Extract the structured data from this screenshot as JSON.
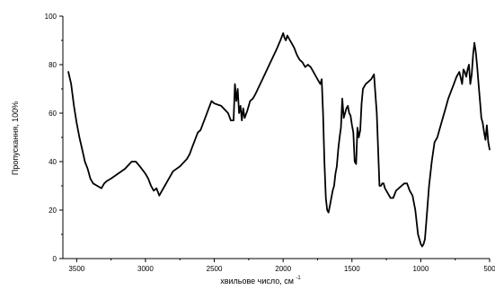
{
  "chart_data": {
    "type": "line",
    "title": "",
    "xlabel": "хвильове число, см",
    "xlabel_superscript": "-1",
    "ylabel": "Пропускання, 100%",
    "xlim": [
      3600,
      500
    ],
    "ylim": [
      0,
      100
    ],
    "x_reversed": true,
    "grid": false,
    "x_ticks": [
      3500,
      3000,
      2500,
      2000,
      1500,
      1000,
      500
    ],
    "y_ticks": [
      0,
      20,
      40,
      60,
      80,
      100
    ],
    "series": [
      {
        "color": "#000000",
        "x": [
          3560,
          3540,
          3520,
          3500,
          3480,
          3460,
          3440,
          3420,
          3400,
          3380,
          3350,
          3320,
          3300,
          3280,
          3250,
          3200,
          3150,
          3100,
          3070,
          3040,
          3000,
          2980,
          2960,
          2940,
          2920,
          2900,
          2880,
          2860,
          2840,
          2800,
          2750,
          2700,
          2680,
          2660,
          2640,
          2620,
          2600,
          2580,
          2560,
          2540,
          2520,
          2500,
          2450,
          2400,
          2380,
          2360,
          2350,
          2340,
          2330,
          2320,
          2310,
          2300,
          2290,
          2280,
          2260,
          2240,
          2220,
          2200,
          2150,
          2100,
          2050,
          2020,
          2000,
          1990,
          1980,
          1970,
          1960,
          1940,
          1920,
          1900,
          1880,
          1860,
          1840,
          1820,
          1800,
          1780,
          1760,
          1740,
          1730,
          1720,
          1710,
          1700,
          1690,
          1680,
          1670,
          1660,
          1650,
          1640,
          1630,
          1620,
          1610,
          1600,
          1590,
          1580,
          1570,
          1560,
          1550,
          1540,
          1530,
          1520,
          1510,
          1500,
          1490,
          1480,
          1470,
          1460,
          1450,
          1440,
          1430,
          1420,
          1400,
          1380,
          1360,
          1340,
          1320,
          1300,
          1290,
          1280,
          1270,
          1260,
          1240,
          1220,
          1200,
          1180,
          1160,
          1140,
          1120,
          1100,
          1080,
          1060,
          1040,
          1020,
          1000,
          990,
          980,
          970,
          960,
          940,
          920,
          900,
          880,
          860,
          840,
          820,
          800,
          780,
          760,
          740,
          720,
          700,
          690,
          680,
          670,
          660,
          650,
          640,
          630,
          620,
          610,
          600,
          590,
          580,
          570,
          560,
          550,
          540,
          530,
          520,
          510,
          500
        ],
        "y": [
          77,
          72,
          63,
          56,
          50,
          45,
          40,
          37,
          33,
          31,
          30,
          29,
          31,
          32,
          33,
          35,
          37,
          40,
          40,
          38,
          35,
          33,
          30,
          28,
          29,
          26,
          28,
          30,
          32,
          36,
          38,
          41,
          43,
          46,
          49,
          52,
          53,
          56,
          59,
          62,
          65,
          64,
          63,
          60,
          57,
          57,
          72,
          65,
          70,
          60,
          63,
          57,
          62,
          58,
          61,
          65,
          66,
          68,
          74,
          80,
          86,
          90,
          93,
          91,
          90,
          92,
          91,
          89,
          87,
          84,
          82,
          81,
          79,
          80,
          79,
          77,
          75,
          73,
          72,
          74,
          60,
          40,
          25,
          20,
          19,
          22,
          25,
          28,
          30,
          35,
          38,
          45,
          50,
          54,
          66,
          58,
          60,
          62,
          63,
          60,
          59,
          55,
          52,
          40,
          39,
          54,
          50,
          53,
          64,
          70,
          72,
          73,
          74,
          76,
          60,
          30,
          30,
          31,
          31,
          29,
          27,
          25,
          25,
          28,
          29,
          30,
          31,
          31,
          28,
          26,
          20,
          10,
          6,
          5,
          6,
          8,
          15,
          30,
          40,
          48,
          50,
          54,
          58,
          62,
          66,
          69,
          72,
          75,
          77,
          72,
          78,
          77,
          75,
          78,
          80,
          72,
          76,
          84,
          89,
          85,
          79,
          72,
          65,
          58,
          56,
          52,
          49,
          55,
          48,
          45
        ]
      }
    ]
  }
}
